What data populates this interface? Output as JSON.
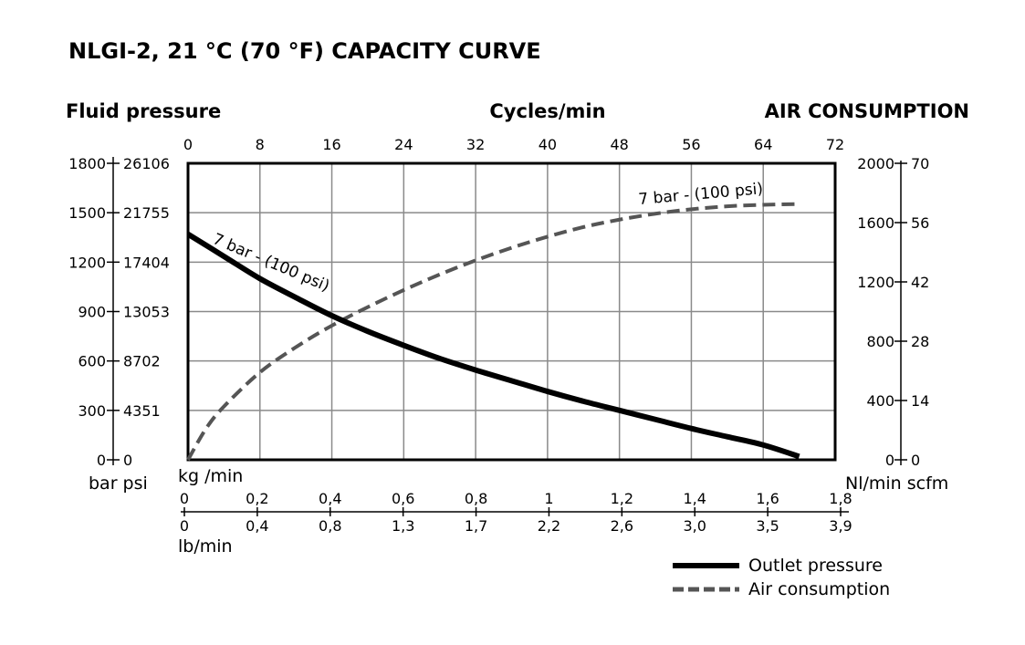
{
  "chart_data": {
    "type": "line",
    "title": "NLGI-2, 21 °C (70 °F) CAPACITY CURVE",
    "axes": {
      "left_title": "Fluid pressure",
      "top_title": "Cycles/min",
      "right_title": "AIR CONSUMPTION",
      "left_units": "bar psi",
      "right_units": "Nl/min scfm",
      "bottom_title_1": "kg /min",
      "bottom_title_2": "lb/min",
      "cycles_ticks": [
        "0",
        "8",
        "16",
        "24",
        "32",
        "40",
        "48",
        "56",
        "64",
        "72"
      ],
      "cycles_range": [
        0,
        72
      ],
      "bar_ticks": [
        "0",
        "300",
        "600",
        "900",
        "1200",
        "1500",
        "1800"
      ],
      "psi_ticks": [
        "0",
        "4351",
        "8702",
        "13053",
        "17404",
        "21755",
        "26106"
      ],
      "bar_range": [
        0,
        1800
      ],
      "nlmin_ticks": [
        "0",
        "400",
        "800",
        "1200",
        "1600",
        "2000"
      ],
      "scfm_ticks": [
        "0",
        "14",
        "28",
        "42",
        "56",
        "70"
      ],
      "nlmin_range": [
        0,
        2000
      ],
      "kgmin_ticks": [
        "0",
        "0,2",
        "0,4",
        "0,6",
        "0,8",
        "1",
        "1,2",
        "1,4",
        "1,6",
        "1,8"
      ],
      "lbmin_ticks": [
        "0",
        "0,4",
        "0,8",
        "1,3",
        "1,7",
        "2,2",
        "2,6",
        "3,0",
        "3,5",
        "3,9"
      ],
      "grid": true
    },
    "series": [
      {
        "name": "Outlet pressure",
        "axis": "left",
        "style": "solid",
        "color": "#000000",
        "label": "7 bar - (100 psi)",
        "x": [
          0,
          4,
          8,
          12,
          16,
          20,
          24,
          28,
          32,
          36,
          40,
          44,
          48,
          52,
          56,
          60,
          64,
          68
        ],
        "y": [
          1370,
          1235,
          1100,
          985,
          875,
          780,
          695,
          615,
          545,
          480,
          415,
          355,
          300,
          245,
          190,
          140,
          90,
          20
        ]
      },
      {
        "name": "Air consumption",
        "axis": "right",
        "style": "dashed",
        "color": "#555555",
        "label": "7 bar - (100 psi)",
        "x": [
          0,
          2,
          4,
          8,
          12,
          16,
          20,
          24,
          28,
          32,
          36,
          40,
          44,
          48,
          52,
          56,
          60,
          64,
          68
        ],
        "y": [
          0,
          210,
          360,
          590,
          760,
          905,
          1030,
          1145,
          1250,
          1345,
          1430,
          1505,
          1570,
          1620,
          1660,
          1690,
          1710,
          1720,
          1725
        ]
      }
    ],
    "legend": {
      "position": "bottom-right",
      "items": [
        {
          "label": "Outlet pressure",
          "style": "solid",
          "color": "#000000"
        },
        {
          "label": "Air consumption",
          "style": "dashed",
          "color": "#555555"
        }
      ]
    }
  }
}
